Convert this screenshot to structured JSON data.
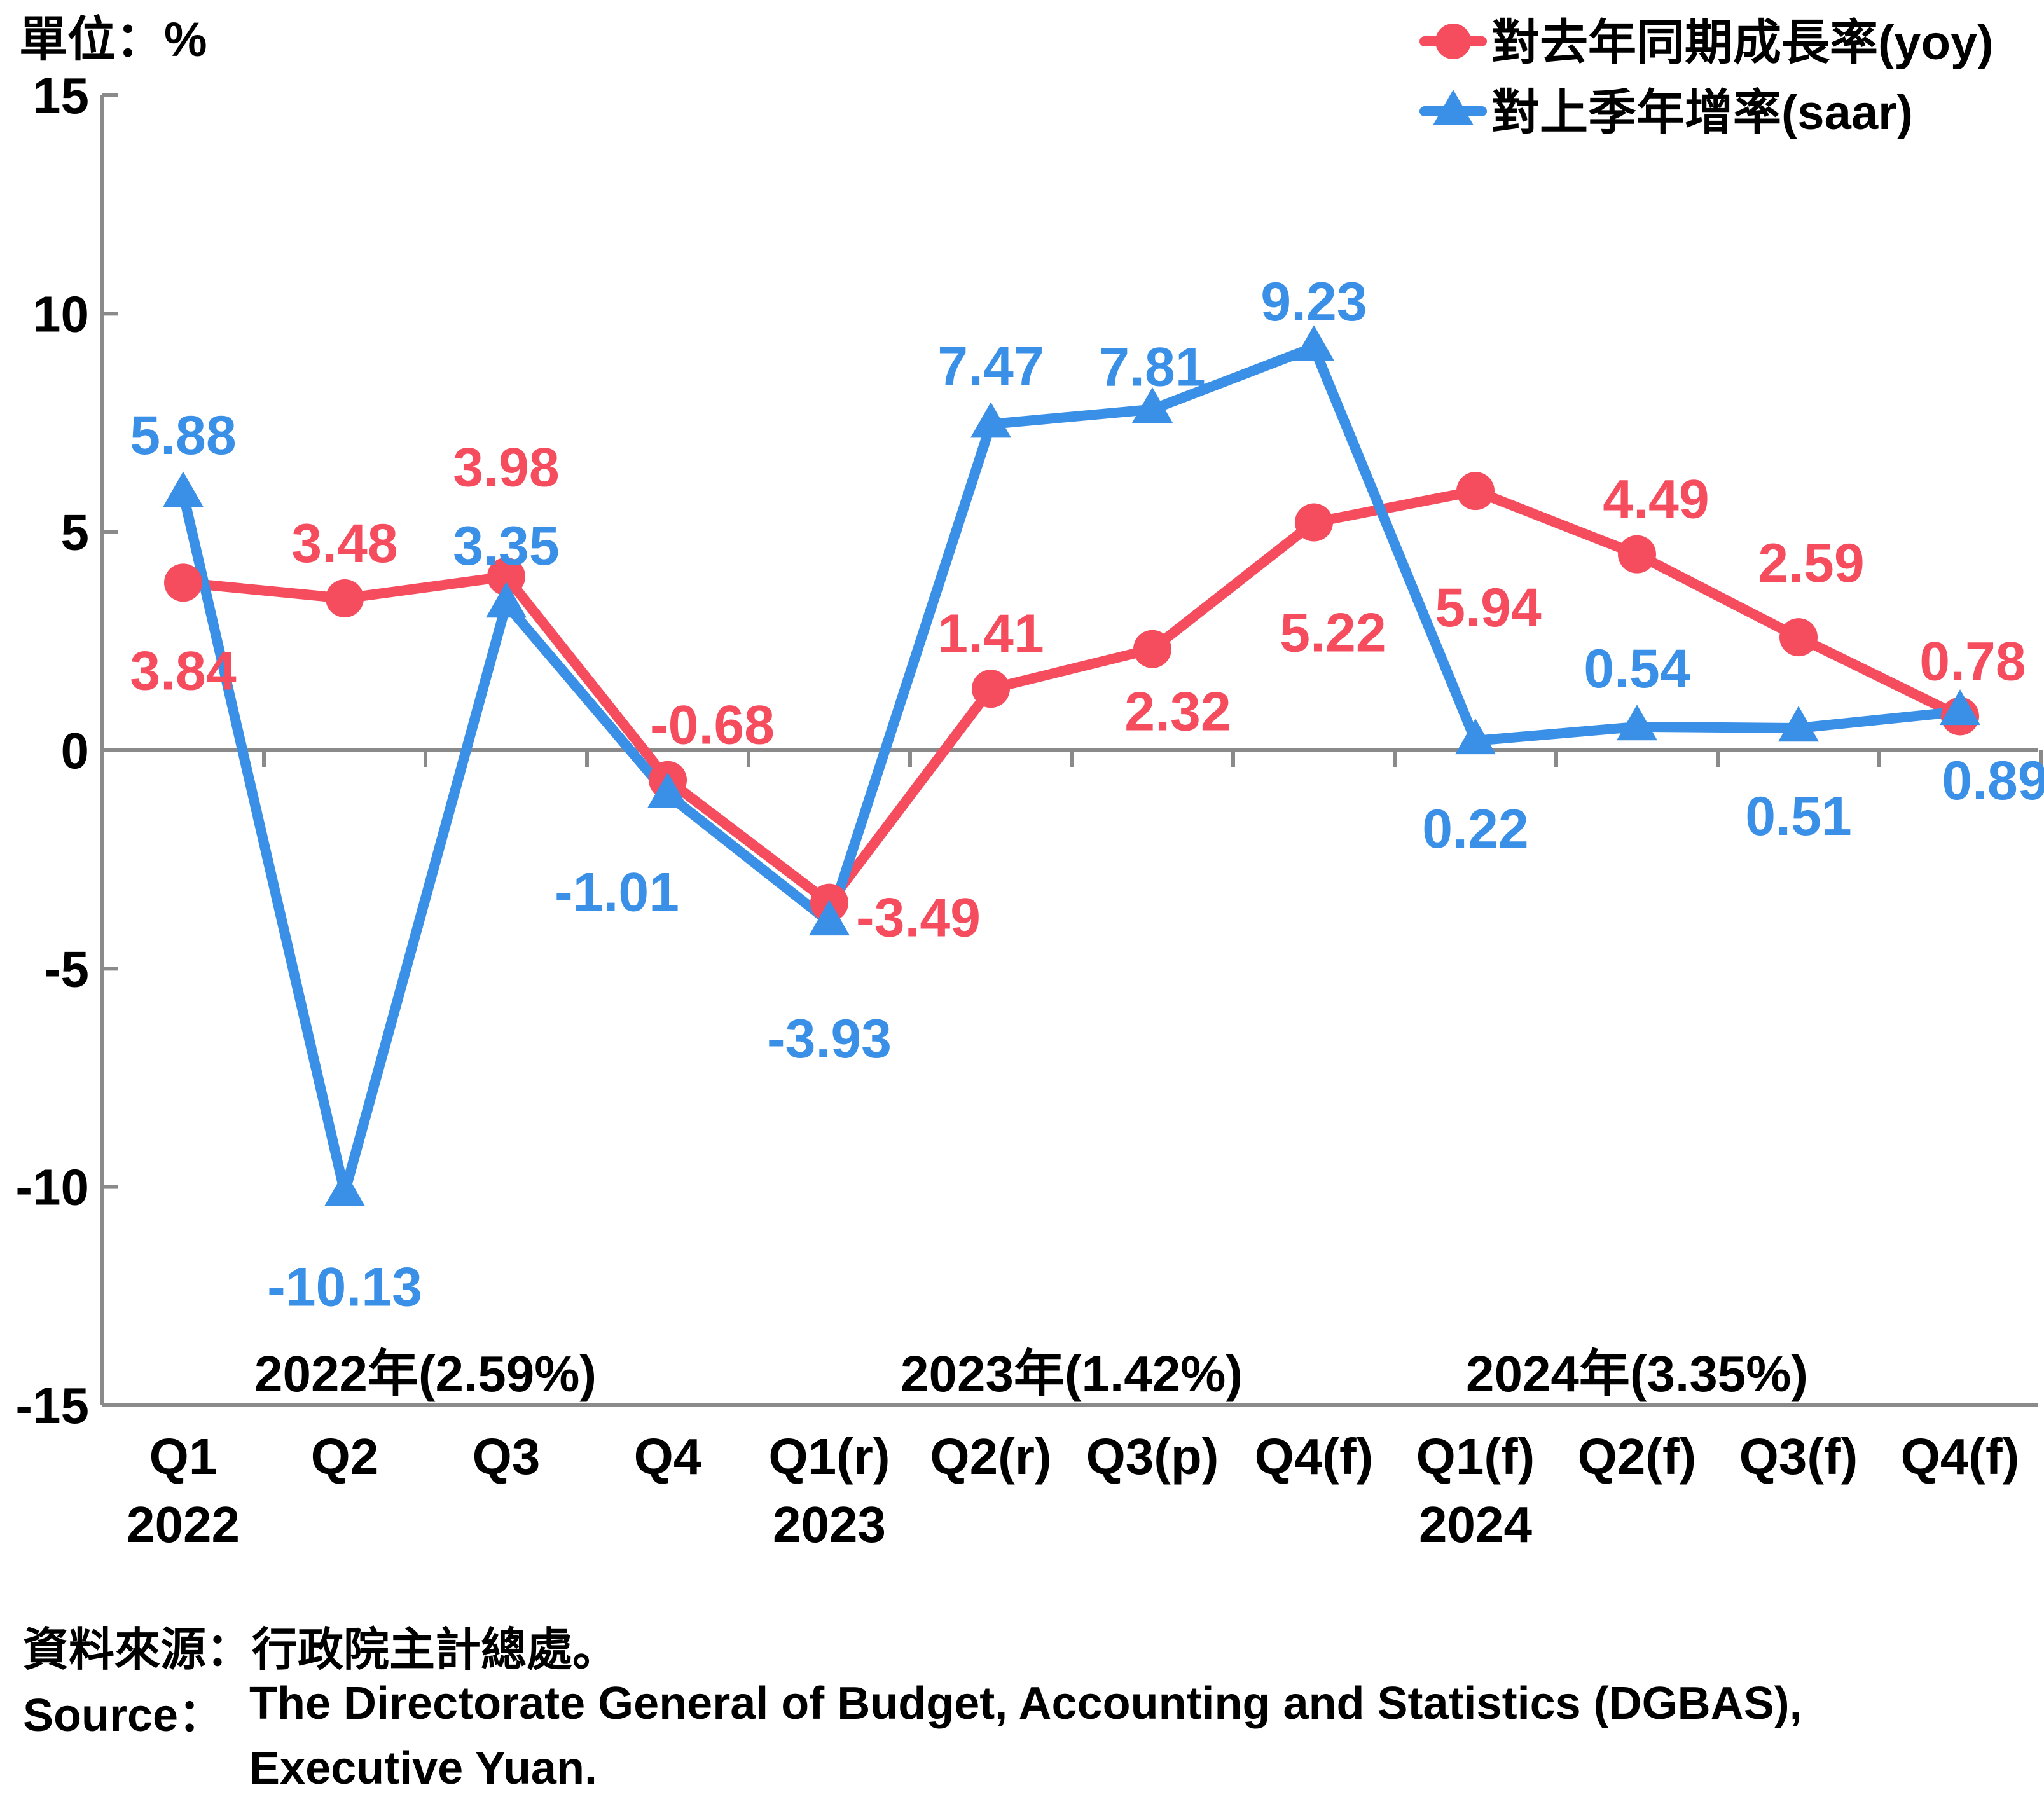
{
  "chart_data": {
    "type": "line",
    "unit_label": "單位：%",
    "categories": [
      "Q1",
      "Q2",
      "Q3",
      "Q4",
      "Q1(r)",
      "Q2(r)",
      "Q3(p)",
      "Q4(f)",
      "Q1(f)",
      "Q2(f)",
      "Q3(f)",
      "Q4(f)"
    ],
    "year_labels": [
      {
        "index": 0,
        "text": "2022"
      },
      {
        "index": 4,
        "text": "2023"
      },
      {
        "index": 8,
        "text": "2024"
      }
    ],
    "annual_labels": [
      {
        "center": 1.5,
        "text": "2022年(2.59%)"
      },
      {
        "center": 5.5,
        "text": "2023年(1.42%)"
      },
      {
        "center": 9.0,
        "text": "2024年(3.35%)"
      }
    ],
    "series": [
      {
        "name": "對去年同期成長率(yoy)",
        "color": "#F54C5E",
        "marker": "circle",
        "values": [
          3.84,
          3.48,
          3.98,
          -0.68,
          -3.49,
          1.41,
          2.32,
          5.22,
          5.94,
          4.49,
          2.59,
          0.78
        ],
        "labels": [
          "3.84",
          "3.48",
          "3.98",
          "-0.68",
          "-3.49",
          "1.41",
          "2.32",
          "5.22",
          "5.94",
          "4.49",
          "2.59",
          "0.78"
        ]
      },
      {
        "name": "對上季年增率(saar)",
        "color": "#3A8FE6",
        "marker": "triangle",
        "values": [
          5.88,
          -10.13,
          3.35,
          -1.01,
          -3.93,
          7.47,
          7.81,
          9.23,
          0.22,
          0.54,
          0.51,
          0.89
        ],
        "labels": [
          "5.88",
          "-10.13",
          "3.35",
          "-1.01",
          "-3.93",
          "7.47",
          "7.81",
          "9.23",
          "0.22",
          "0.54",
          "0.51",
          "0.89"
        ]
      }
    ],
    "ylim": [
      -15,
      15
    ],
    "yticks": [
      15,
      10,
      5,
      0,
      -5,
      -10,
      -15
    ],
    "ytick_labels": [
      "15",
      "10",
      "5",
      "0",
      "-5",
      "-10",
      "-15"
    ],
    "legend_position": "top-right",
    "grid": false
  },
  "source": {
    "zh": "資料來源：行政院主計總處。",
    "en_label": "Source：",
    "en_line1": "The Directorate General of Budget, Accounting and Statistics (DGBAS),",
    "en_line2": "Executive Yuan."
  }
}
